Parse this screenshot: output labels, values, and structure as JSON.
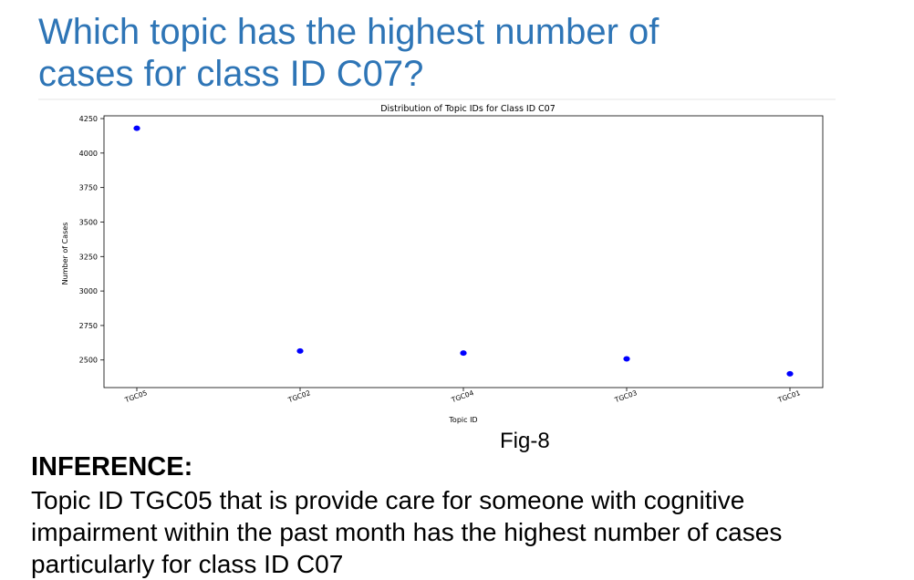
{
  "slide": {
    "title_lines": [
      "Which topic has the highest number of",
      "cases for class ID C07?"
    ],
    "figure_label": "Fig-8",
    "inference_heading": "INFERENCE:",
    "inference_lines": [
      "Topic ID TGC05 that is provide care for someone with cognitive",
      "impairment within the past month has the highest number of cases",
      "particularly for class ID C07"
    ]
  },
  "chart_data": {
    "type": "scatter",
    "title": "Distribution of Topic IDs for Class ID C07",
    "xlabel": "Topic ID",
    "ylabel": "Number of Cases",
    "categories": [
      "TGC05",
      "TGC02",
      "TGC04",
      "TGC03",
      "TGC01"
    ],
    "values": [
      4180,
      2565,
      2550,
      2508,
      2400
    ],
    "ylim": [
      2300,
      4270
    ],
    "yticks": [
      2500,
      2750,
      3000,
      3250,
      3500,
      3750,
      4000,
      4250
    ],
    "point_color": "#0000ff",
    "grid": false,
    "legend": "none"
  }
}
